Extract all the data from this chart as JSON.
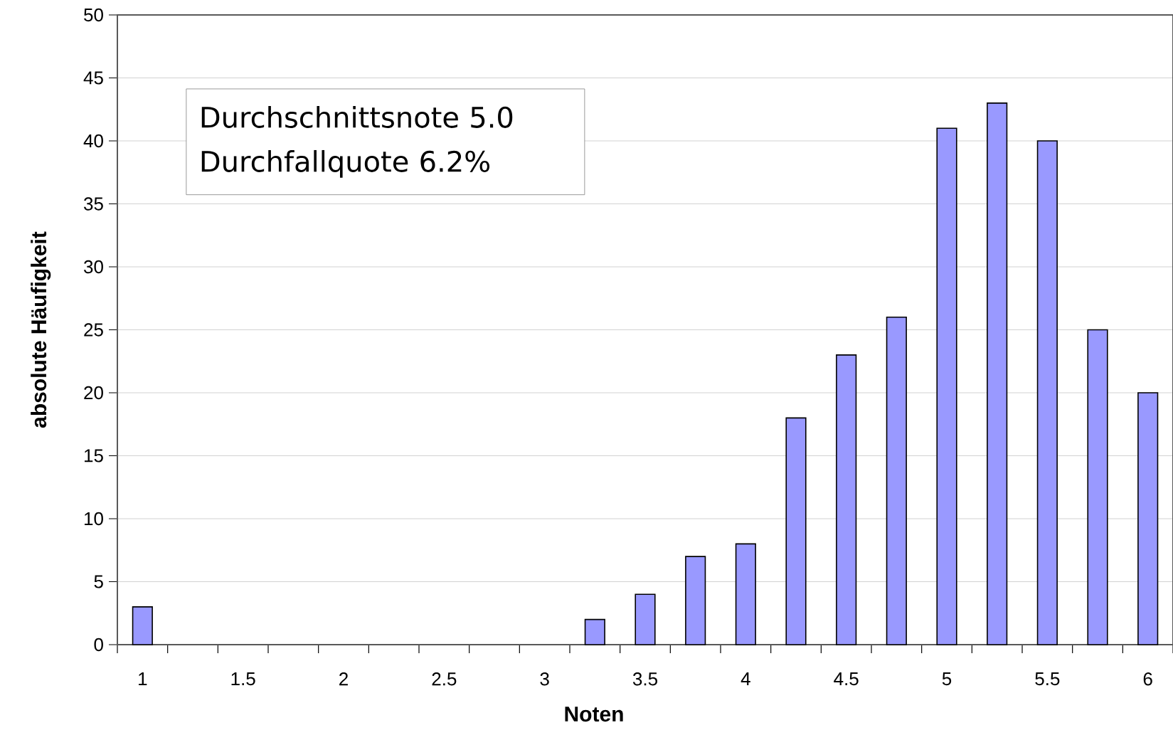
{
  "chart_data": {
    "type": "bar",
    "xlabel": "Noten",
    "ylabel": "absolute Häufigkeit",
    "categories": [
      "1",
      null,
      "1.5",
      null,
      "2",
      null,
      "2.5",
      null,
      "3",
      null,
      "3.5",
      null,
      "4",
      null,
      "4.5",
      null,
      "5",
      null,
      "5.5",
      null,
      "6"
    ],
    "values": [
      3,
      0,
      0,
      0,
      0,
      0,
      0,
      0,
      0,
      2,
      4,
      7,
      8,
      18,
      23,
      26,
      41,
      43,
      40,
      25,
      20
    ],
    "color": "#9999ff",
    "ylim": [
      0,
      50
    ],
    "yticks": [
      0,
      5,
      10,
      15,
      20,
      25,
      30,
      35,
      40,
      45,
      50
    ],
    "grid": "y",
    "annotations": [
      "Durchschnittsnote 5.0",
      "Durchfallquote 6.2%"
    ]
  }
}
